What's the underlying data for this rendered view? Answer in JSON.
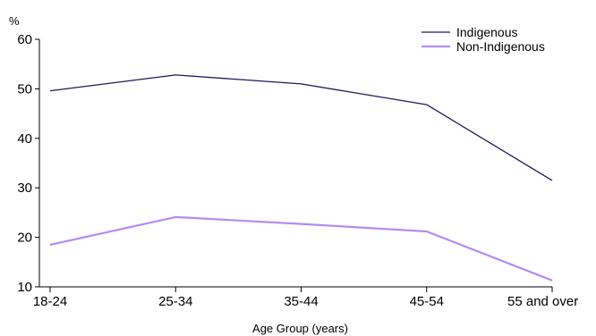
{
  "chart_data": {
    "type": "line",
    "title": "",
    "ylabel": "%",
    "xlabel": "Age Group (years)",
    "categories": [
      "18-24",
      "25-34",
      "35-44",
      "45-54",
      "55 and over"
    ],
    "y_ticks": [
      10,
      20,
      30,
      40,
      50,
      60
    ],
    "ylim": [
      10,
      60
    ],
    "grid": false,
    "legend_position": "top-right",
    "series": [
      {
        "name": "Indigenous",
        "color": "#1a1a5e",
        "values": [
          49.6,
          52.8,
          51.0,
          46.8,
          31.5
        ]
      },
      {
        "name": "Non-Indigenous",
        "color": "#b48cf0",
        "values": [
          18.5,
          24.1,
          22.7,
          21.2,
          11.3
        ]
      }
    ]
  }
}
